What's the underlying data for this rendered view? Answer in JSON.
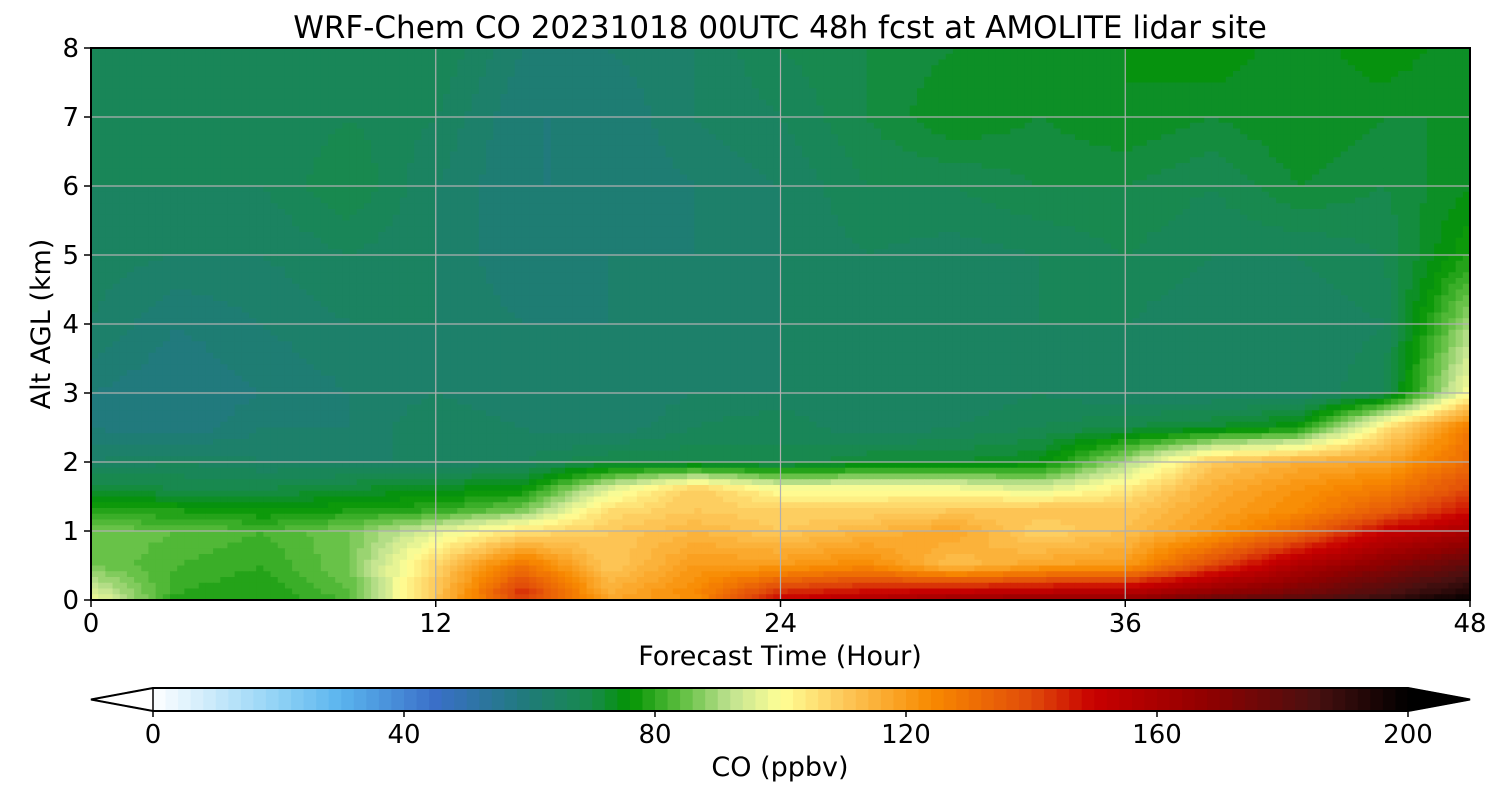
{
  "chart_data": {
    "type": "heatmap",
    "title": "WRF-Chem CO  20231018 00UTC 48h fcst at AMOLITE lidar site",
    "xlabel": "Forecast Time (Hour)",
    "ylabel": "Alt AGL (km)",
    "xlim": [
      0,
      48
    ],
    "ylim": [
      0,
      8
    ],
    "x_ticks": [
      "0",
      "12",
      "24",
      "36",
      "48"
    ],
    "y_ticks": [
      "0",
      "1",
      "2",
      "3",
      "4",
      "5",
      "6",
      "7",
      "8"
    ],
    "grid": true,
    "x_hours": [
      0,
      3,
      6,
      9,
      12,
      15,
      18,
      21,
      24,
      27,
      30,
      33,
      36,
      39,
      42,
      45,
      48
    ],
    "y_km": [
      0,
      0.1,
      0.5,
      1.0,
      1.3,
      1.6,
      2.0,
      2.5,
      3.0,
      4.0,
      5.0,
      6.0,
      7.0,
      8.0
    ],
    "z_ppbv": [
      [
        100,
        78,
        78,
        82,
        112,
        140,
        118,
        122,
        150,
        158,
        165,
        168,
        168,
        178,
        182,
        190,
        200
      ],
      [
        96,
        80,
        78,
        84,
        110,
        145,
        116,
        124,
        145,
        150,
        154,
        156,
        158,
        168,
        174,
        184,
        195
      ],
      [
        86,
        82,
        80,
        86,
        108,
        130,
        110,
        120,
        120,
        124,
        112,
        118,
        120,
        140,
        158,
        170,
        180
      ],
      [
        86,
        84,
        82,
        86,
        96,
        105,
        110,
        114,
        110,
        114,
        118,
        108,
        112,
        120,
        132,
        150,
        160
      ],
      [
        78,
        78,
        76,
        78,
        80,
        86,
        106,
        110,
        108,
        108,
        110,
        112,
        110,
        118,
        124,
        135,
        148
      ],
      [
        72,
        70,
        70,
        72,
        74,
        76,
        96,
        110,
        100,
        100,
        100,
        96,
        104,
        116,
        122,
        128,
        140
      ],
      [
        64,
        66,
        64,
        64,
        64,
        66,
        70,
        70,
        68,
        72,
        72,
        74,
        90,
        110,
        116,
        118,
        132
      ],
      [
        60,
        58,
        62,
        62,
        66,
        64,
        62,
        66,
        68,
        64,
        66,
        68,
        70,
        72,
        76,
        104,
        128
      ],
      [
        60,
        58,
        60,
        62,
        64,
        62,
        62,
        64,
        64,
        64,
        64,
        66,
        64,
        64,
        64,
        68,
        100
      ],
      [
        64,
        60,
        62,
        64,
        64,
        62,
        62,
        62,
        64,
        66,
        64,
        66,
        66,
        64,
        64,
        66,
        90
      ],
      [
        65,
        64,
        64,
        66,
        64,
        60,
        62,
        62,
        64,
        66,
        65,
        66,
        68,
        66,
        66,
        68,
        78
      ],
      [
        66,
        66,
        66,
        70,
        64,
        60,
        60,
        62,
        64,
        68,
        68,
        70,
        70,
        68,
        72,
        70,
        74
      ],
      [
        66,
        66,
        66,
        68,
        66,
        60,
        60,
        64,
        66,
        70,
        74,
        72,
        74,
        72,
        74,
        72,
        72
      ],
      [
        66,
        66,
        66,
        66,
        68,
        62,
        62,
        64,
        68,
        70,
        72,
        72,
        74,
        76,
        72,
        76,
        72
      ]
    ],
    "colorbar": {
      "label": "CO  (ppbv)",
      "ticks": [
        "0",
        "40",
        "80",
        "120",
        "160",
        "200"
      ],
      "range": [
        0,
        200
      ],
      "levels": 100,
      "extend": "both",
      "orientation": "horizontal",
      "colors": [
        {
          "v": 0,
          "c": "#ffffff"
        },
        {
          "v": 20,
          "c": "#8fd2f5"
        },
        {
          "v": 30,
          "c": "#5ab4ee"
        },
        {
          "v": 45,
          "c": "#3a6fc8"
        },
        {
          "v": 60,
          "c": "#1f7b78"
        },
        {
          "v": 70,
          "c": "#178a4a"
        },
        {
          "v": 76,
          "c": "#029402"
        },
        {
          "v": 84,
          "c": "#5cbd3e"
        },
        {
          "v": 92,
          "c": "#bfe290"
        },
        {
          "v": 100,
          "c": "#ffff96"
        },
        {
          "v": 110,
          "c": "#fdc85a"
        },
        {
          "v": 124,
          "c": "#f88a00"
        },
        {
          "v": 140,
          "c": "#e04a0a"
        },
        {
          "v": 150,
          "c": "#c80000"
        },
        {
          "v": 168,
          "c": "#900000"
        },
        {
          "v": 185,
          "c": "#4a1010"
        },
        {
          "v": 200,
          "c": "#000000"
        }
      ]
    }
  }
}
